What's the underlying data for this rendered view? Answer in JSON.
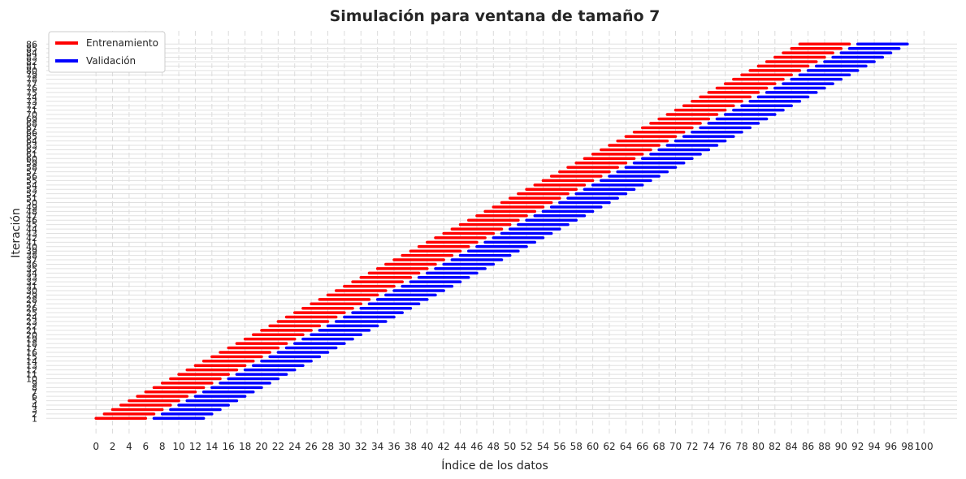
{
  "chart_data": {
    "type": "line",
    "title": "Simulación para ventana de tamaño 7",
    "xlabel": "Índice de los datos",
    "ylabel": "Iteración",
    "xlim": [
      -6,
      104
    ],
    "ylim": [
      -3,
      89
    ],
    "xticks": [
      0,
      2,
      4,
      6,
      8,
      10,
      12,
      14,
      16,
      18,
      20,
      22,
      24,
      26,
      28,
      30,
      32,
      34,
      36,
      38,
      40,
      42,
      44,
      46,
      48,
      50,
      52,
      54,
      56,
      58,
      60,
      62,
      64,
      66,
      68,
      70,
      72,
      74,
      76,
      78,
      80,
      82,
      84,
      86,
      88,
      90,
      92,
      94,
      96,
      98,
      100
    ],
    "yticks_start": 1,
    "yticks_end": 86,
    "window_size": 7,
    "iterations": 86,
    "grid": true,
    "legend_position": "upper-left",
    "series": [
      {
        "name": "Entrenamiento",
        "color": "#ff0000",
        "segment": "train",
        "start_offset": -1,
        "length": 6
      },
      {
        "name": "Validación",
        "color": "#0000ff",
        "segment": "val",
        "start_offset": 6,
        "length": 6
      }
    ]
  }
}
